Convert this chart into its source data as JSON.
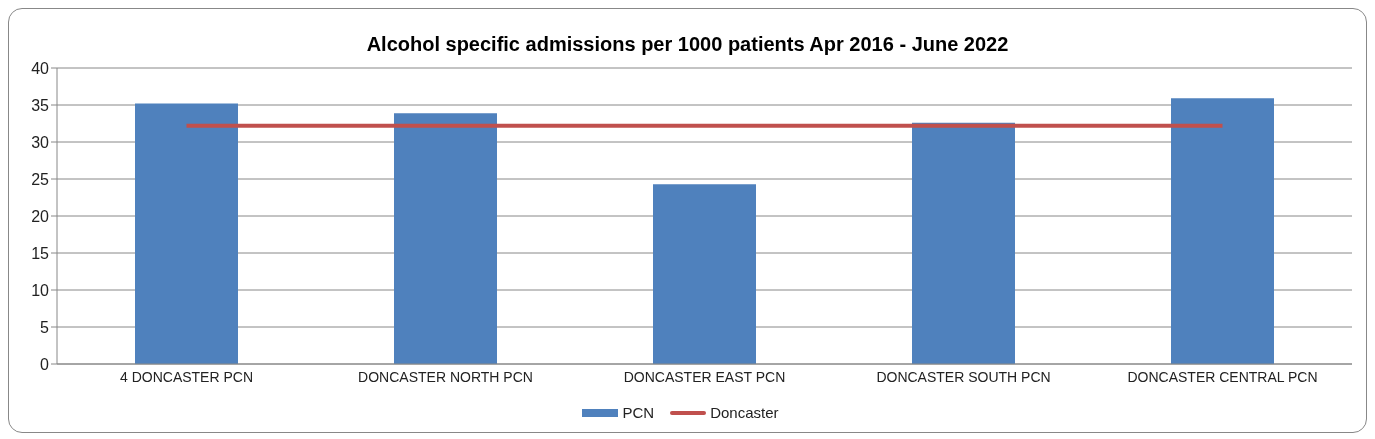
{
  "chart_data": {
    "type": "bar",
    "title": "Alcohol specific admissions per 1000 patients Apr 2016 - June 2022",
    "categories": [
      "4 DONCASTER PCN",
      "DONCASTER NORTH PCN",
      "DONCASTER EAST PCN",
      "DONCASTER SOUTH PCN",
      "DONCASTER CENTRAL PCN"
    ],
    "series": [
      {
        "name": "PCN",
        "color": "#4f81bd",
        "values": [
          35.2,
          33.9,
          24.3,
          32.6,
          35.9
        ]
      },
      {
        "name": "Doncaster",
        "type": "line",
        "color": "#c0504d",
        "values": [
          32.2,
          32.2,
          32.2,
          32.2,
          32.2
        ]
      }
    ],
    "ylim": [
      0,
      40
    ],
    "yticks": [
      0,
      5,
      10,
      15,
      20,
      25,
      30,
      35,
      40
    ],
    "grid": "y",
    "legend": "bottom",
    "marker": "none"
  }
}
